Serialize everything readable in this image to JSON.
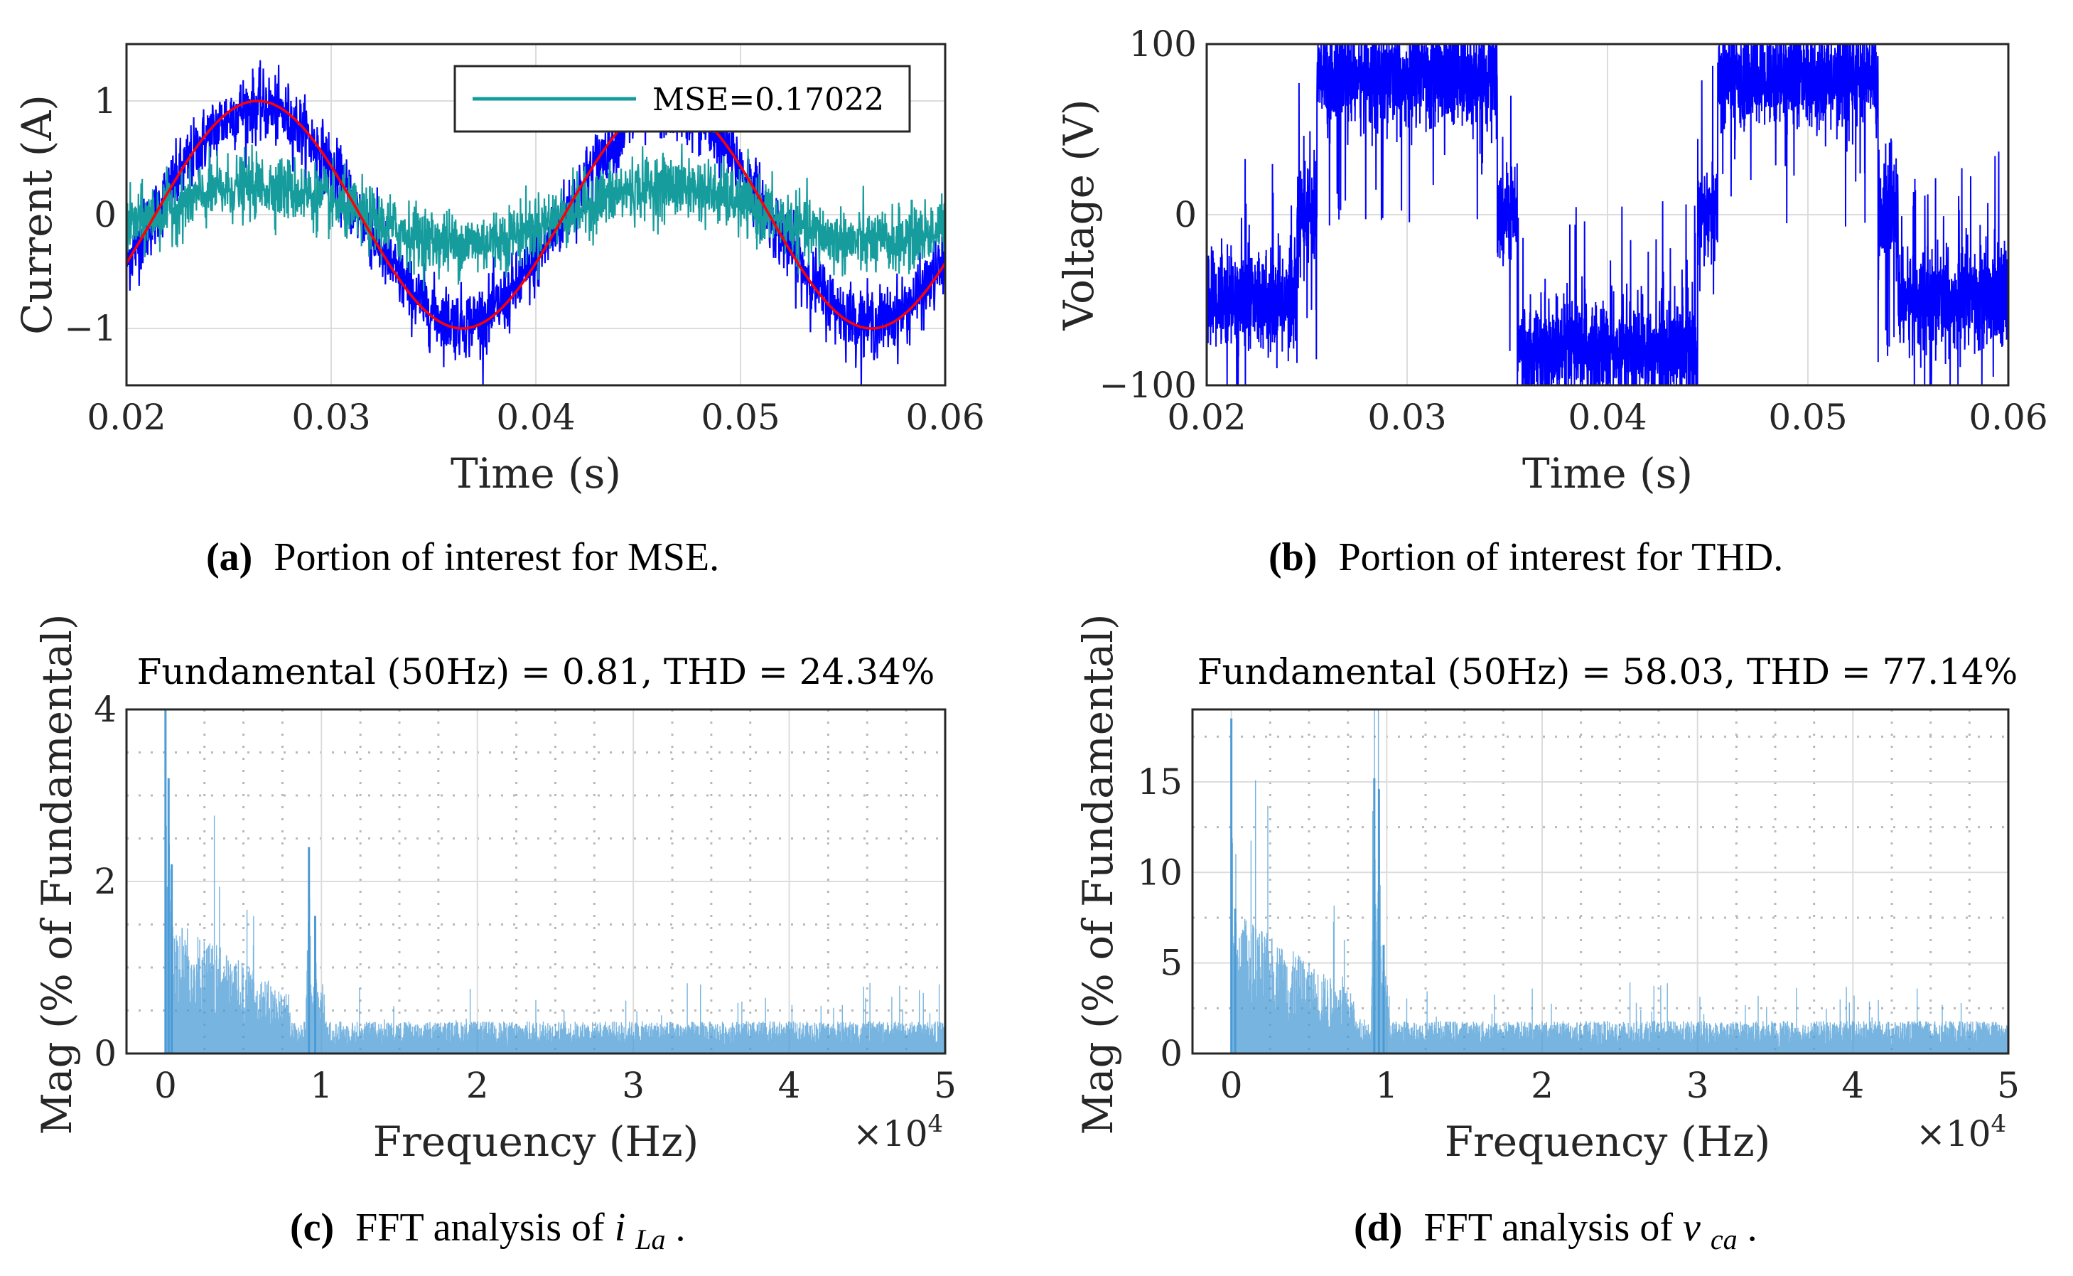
{
  "figures": [
    {
      "id": "a",
      "caption_label": "(a)",
      "caption_text": "Portion of interest for MSE."
    },
    {
      "id": "b",
      "caption_label": "(b)",
      "caption_text": "Portion of interest for THD."
    },
    {
      "id": "c",
      "caption_label": "(c)",
      "caption_text": "FFT analysis of ",
      "caption_var": "i",
      "caption_sub": "La",
      "caption_end": "."
    },
    {
      "id": "d",
      "caption_label": "(d)",
      "caption_text": "FFT analysis of ",
      "caption_var": "v",
      "caption_sub": "ca",
      "caption_end": "."
    }
  ],
  "chart_data": [
    {
      "id": "a",
      "type": "line",
      "title": "",
      "xlabel": "Time (s)",
      "ylabel": "Current (A)",
      "xlim": [
        0.02,
        0.06
      ],
      "ylim": [
        -1.5,
        1.5
      ],
      "xticks": [
        "0.02",
        "0.03",
        "0.04",
        "0.05",
        "0.06"
      ],
      "yticks": [
        "−1",
        "0",
        "1"
      ],
      "ytick_values": [
        -1,
        0,
        1
      ],
      "grid": true,
      "legend": {
        "position": "top-right",
        "entries": [
          "MSE=0.17022"
        ]
      },
      "series": [
        {
          "name": "reference",
          "color": "#ff0000",
          "function": "sine",
          "amplitude": 1.0,
          "frequency_hz": 50,
          "phase_peak_time": 0.0264
        },
        {
          "name": "measured",
          "color": "#0000ff",
          "function": "sine+noise",
          "amplitude": 0.95,
          "frequency_hz": 50,
          "phase_peak_time": 0.0264,
          "noise": 0.15
        },
        {
          "name": "MSE=0.17022",
          "color": "#169c9c",
          "function": "sine+noise",
          "amplitude": 0.25,
          "frequency_hz": 50,
          "phase_peak_time": 0.0264,
          "noise": 0.14
        }
      ]
    },
    {
      "id": "b",
      "type": "line",
      "title": "",
      "xlabel": "Time (s)",
      "ylabel": "Voltage (V)",
      "xlim": [
        0.02,
        0.06
      ],
      "ylim": [
        -100,
        100
      ],
      "xticks": [
        "0.02",
        "0.03",
        "0.04",
        "0.05",
        "0.06"
      ],
      "yticks": [
        "−100",
        "0",
        "100"
      ],
      "ytick_values": [
        -100,
        0,
        100
      ],
      "grid": true,
      "series": [
        {
          "name": "voltage",
          "color": "#0000ff",
          "levels": [
            [
              0.02,
              0.0245,
              -50
            ],
            [
              0.0245,
              0.0255,
              0
            ],
            [
              0.0255,
              0.0345,
              80
            ],
            [
              0.0345,
              0.0355,
              0
            ],
            [
              0.0355,
              0.0445,
              -80
            ],
            [
              0.0445,
              0.0455,
              0
            ],
            [
              0.0455,
              0.0535,
              80
            ],
            [
              0.0535,
              0.0545,
              0
            ],
            [
              0.0545,
              0.06,
              -50
            ]
          ]
        }
      ]
    },
    {
      "id": "c",
      "type": "bar",
      "title": "Fundamental (50Hz) = 0.81, THD = 24.34%",
      "xlabel": "Frequency (Hz)",
      "ylabel": "Mag (% of Fundamental)",
      "xlim": [
        -2500,
        50000
      ],
      "ylim": [
        0,
        4
      ],
      "xticks": [
        "0",
        "1",
        "2",
        "3",
        "4",
        "5"
      ],
      "xtick_values": [
        0,
        10000,
        20000,
        30000,
        40000,
        50000
      ],
      "x_multiplier": "×10",
      "x_multiplier_exp": "4",
      "yticks": [
        "0",
        "2",
        "4"
      ],
      "ytick_values": [
        0,
        2,
        4
      ],
      "y_minor_step": 0.5,
      "grid": true,
      "color": "#4a9bd6",
      "peaks": [
        [
          0,
          4.0
        ],
        [
          200,
          3.2
        ],
        [
          400,
          2.2
        ],
        [
          9200,
          2.4
        ],
        [
          9600,
          1.6
        ]
      ],
      "floor": 0.25
    },
    {
      "id": "d",
      "type": "bar",
      "title": "Fundamental (50Hz) = 58.03, THD = 77.14%",
      "xlabel": "Frequency (Hz)",
      "ylabel": "Mag (% of Fundamental)",
      "xlim": [
        -2500,
        50000
      ],
      "ylim": [
        0,
        19
      ],
      "xticks": [
        "0",
        "1",
        "2",
        "3",
        "4",
        "5"
      ],
      "xtick_values": [
        0,
        10000,
        20000,
        30000,
        40000,
        50000
      ],
      "x_multiplier": "×10",
      "x_multiplier_exp": "4",
      "yticks": [
        "0",
        "5",
        "10",
        "15"
      ],
      "ytick_values": [
        0,
        5,
        10,
        15
      ],
      "y_minor_step": 2.5,
      "grid": true,
      "color": "#4a9bd6",
      "peaks": [
        [
          0,
          18.5
        ],
        [
          250,
          8
        ],
        [
          9200,
          15.2
        ],
        [
          9500,
          14.6
        ],
        [
          9800,
          6
        ]
      ],
      "floor": 1.2
    }
  ]
}
